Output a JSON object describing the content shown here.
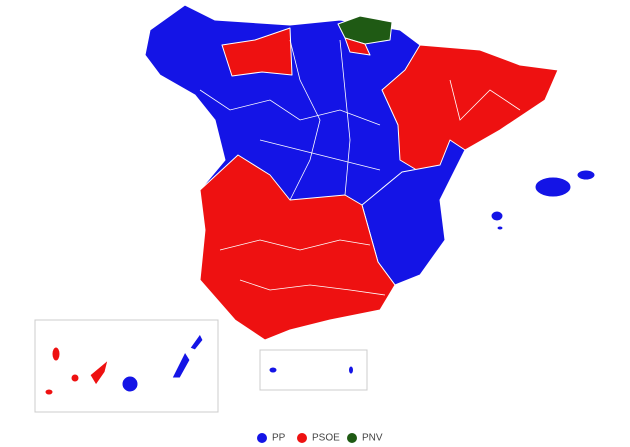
{
  "legend": [
    {
      "label": "PP",
      "color": "#1414e6"
    },
    {
      "label": "PSOE",
      "color": "#ee1111"
    },
    {
      "label": "PNV",
      "color": "#1f5a14"
    }
  ]
}
